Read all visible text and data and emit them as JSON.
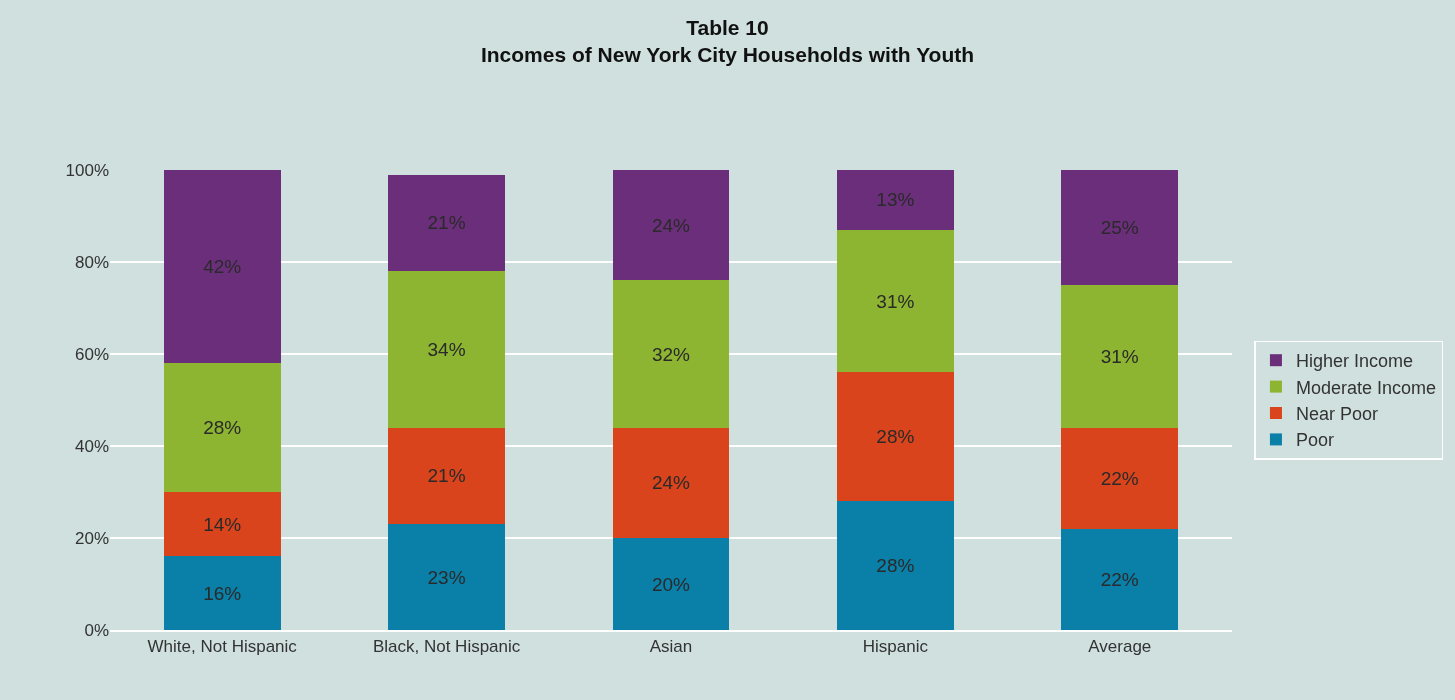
{
  "chart_data": {
    "type": "bar",
    "title": "Table 10\nIncomes of New York City Households with Youth",
    "stacked": true,
    "categories": [
      "White, Not Hispanic",
      "Black, Not Hispanic",
      "Asian",
      "Hispanic",
      "Average"
    ],
    "series": [
      {
        "name": "Poor",
        "color": "#0a7fa8",
        "values": [
          16,
          23,
          20,
          28,
          22
        ],
        "value_labels": [
          "16%",
          "23%",
          "20%",
          "28%",
          "22%"
        ]
      },
      {
        "name": "Near Poor",
        "color": "#d9441c",
        "values": [
          14,
          21,
          24,
          28,
          22
        ],
        "value_labels": [
          "14%",
          "21%",
          "24%",
          "28%",
          "22%"
        ]
      },
      {
        "name": "Moderate Income",
        "color": "#8db531",
        "values": [
          28,
          34,
          32,
          31,
          31
        ],
        "value_labels": [
          "28%",
          "34%",
          "32%",
          "31%",
          "31%"
        ]
      },
      {
        "name": "Higher Income",
        "color": "#6a2e7a",
        "values": [
          42,
          21,
          24,
          13,
          25
        ],
        "value_labels": [
          "42%",
          "21%",
          "24%",
          "13%",
          "25%"
        ]
      }
    ],
    "ylim": [
      0,
      100
    ],
    "yticks": [
      {
        "value": 0,
        "label": "0%"
      },
      {
        "value": 20,
        "label": "20%"
      },
      {
        "value": 40,
        "label": "40%"
      },
      {
        "value": 60,
        "label": "60%"
      },
      {
        "value": 80,
        "label": "80%"
      },
      {
        "value": 100,
        "label": "100%"
      }
    ],
    "grid": "y",
    "legend": "right"
  }
}
